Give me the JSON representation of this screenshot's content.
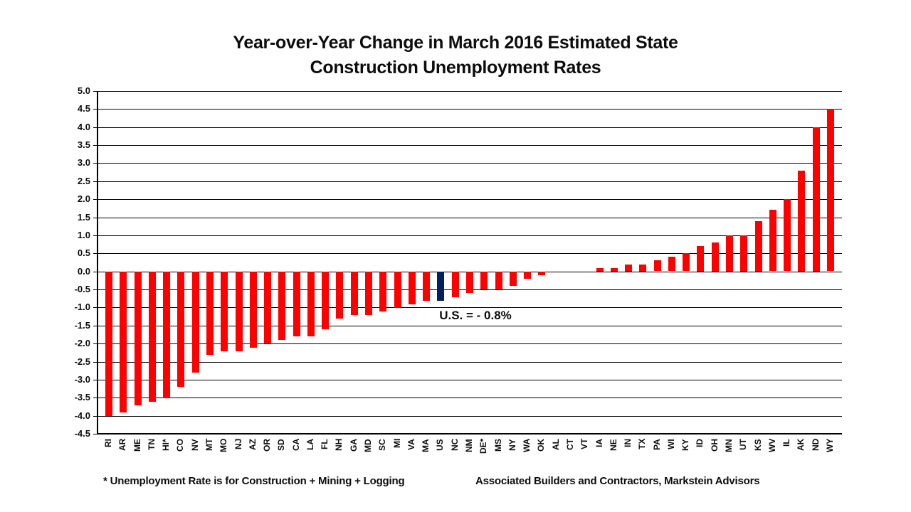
{
  "slide": {
    "title_line1": "Year-over-Year Change in March 2016 Estimated State",
    "title_line2": "Construction Unemployment Rates",
    "footnote_left": "* Unemployment Rate is for Construction + Mining + Logging",
    "footnote_right": "Associated Builders and Contractors, Markstein Advisors"
  },
  "chart_data": {
    "type": "bar",
    "title": "Year-over-Year Change in March 2016 Estimated State Construction Unemployment Rates",
    "categories": [
      "RI",
      "AR",
      "ME",
      "TN",
      "HI*",
      "CO",
      "NV",
      "MT",
      "MO",
      "NJ",
      "AZ",
      "OR",
      "SD",
      "CA",
      "LA",
      "FL",
      "NH",
      "GA",
      "MD",
      "SC",
      "MI",
      "VA",
      "MA",
      "US",
      "NC",
      "NM",
      "DE*",
      "MS",
      "NY",
      "WA",
      "OK",
      "AL",
      "CT",
      "VT",
      "IA",
      "NE",
      "IN",
      "TX",
      "PA",
      "WI",
      "KY",
      "ID",
      "OH",
      "MN",
      "UT",
      "KS",
      "WV",
      "IL",
      "AK",
      "ND",
      "WY"
    ],
    "values": [
      -4.0,
      -3.9,
      -3.7,
      -3.6,
      -3.5,
      -3.2,
      -2.8,
      -2.3,
      -2.2,
      -2.2,
      -2.1,
      -2.0,
      -1.9,
      -1.8,
      -1.8,
      -1.6,
      -1.3,
      -1.2,
      -1.2,
      -1.1,
      -1.0,
      -0.9,
      -0.8,
      -0.8,
      -0.7,
      -0.6,
      -0.5,
      -0.5,
      -0.4,
      -0.2,
      -0.1,
      0.0,
      0.0,
      0.0,
      0.1,
      0.1,
      0.2,
      0.2,
      0.3,
      0.4,
      0.5,
      0.7,
      0.8,
      1.0,
      1.0,
      1.4,
      1.7,
      2.0,
      2.8,
      4.0,
      4.5
    ],
    "units": "percentage points",
    "highlight_category": "US",
    "annotation": "U.S. = - 0.8%",
    "xlabel": "",
    "ylabel": "",
    "ylim": [
      -4.5,
      5.0
    ],
    "ytick_step": 0.5,
    "ytick_labels": [
      "5.0",
      "4.5",
      "4.0",
      "3.5",
      "3.0",
      "2.5",
      "2.0",
      "1.5",
      "1.0",
      "0.5",
      "0.0",
      "-0.5",
      "-1.0",
      "-1.5",
      "-2.0",
      "-2.5",
      "-3.0",
      "-3.5",
      "-4.0",
      "-4.5"
    ],
    "grid": "horizontal",
    "legend": "none",
    "colors": {
      "bar": "#FF0000",
      "highlight_bar": "#002060",
      "gridline": "#000000",
      "axis": "#000000",
      "text": "#0d0d0d",
      "background": "#ffffff"
    }
  }
}
